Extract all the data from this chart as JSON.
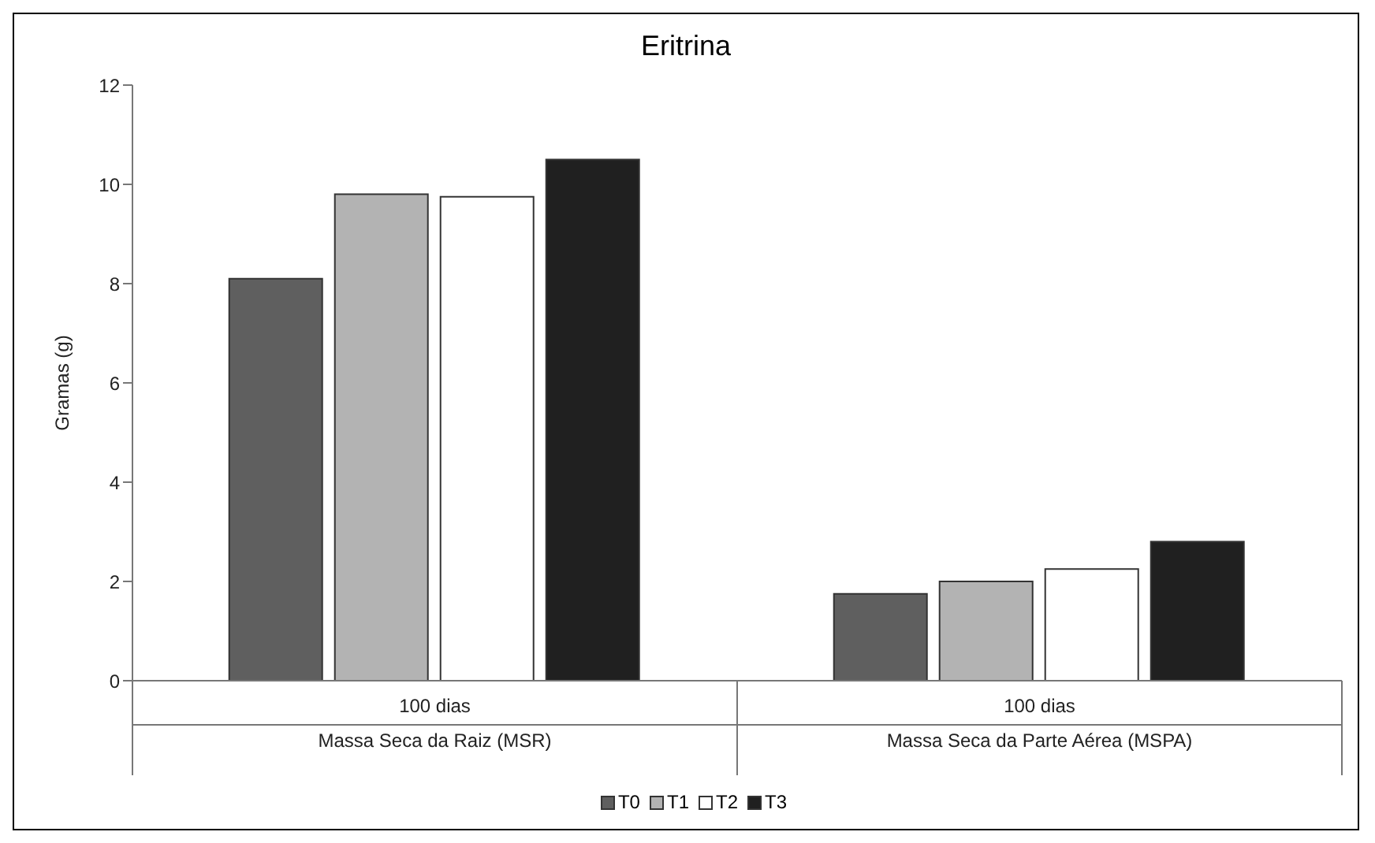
{
  "chart_data": {
    "type": "bar",
    "title": "Eritrina",
    "ylabel": "Gramas (g)",
    "categories": [
      "100 dias\nMassa Seca da Raiz (MSR)",
      "100 dias\nMassa Seca da Parte Aérea (MSPA)"
    ],
    "series": [
      {
        "name": "T0",
        "color": "#5f5f5f",
        "values": [
          8.1,
          1.75
        ]
      },
      {
        "name": "T1",
        "color": "#b3b3b3",
        "values": [
          9.8,
          2.0
        ]
      },
      {
        "name": "T2",
        "color": "#ffffff",
        "values": [
          9.75,
          2.25
        ]
      },
      {
        "name": "T3",
        "color": "#202020",
        "values": [
          10.5,
          2.8
        ]
      }
    ],
    "ylim": [
      0,
      12
    ],
    "yticks": [
      0,
      2,
      4,
      6,
      8,
      10,
      12
    ],
    "legend": "bottom"
  }
}
